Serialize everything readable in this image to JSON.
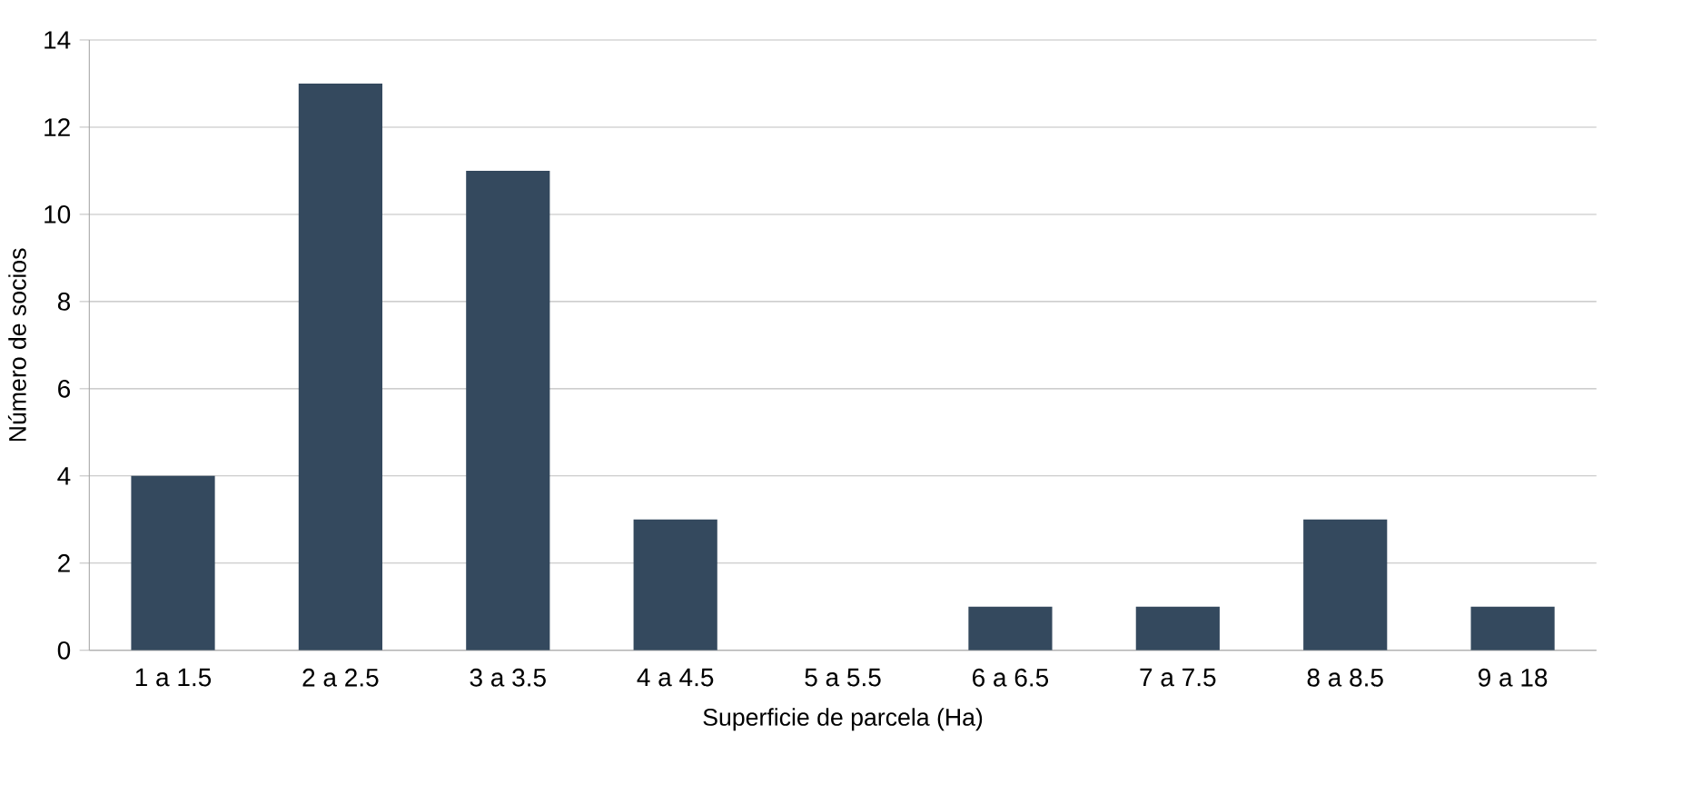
{
  "chart_data": {
    "type": "bar",
    "xlabel": "Superficie de parcela (Ha)",
    "ylabel": "Número de socios",
    "categories": [
      "1 a 1.5",
      "2 a 2.5",
      "3 a 3.5",
      "4 a 4.5",
      "5 a 5.5",
      "6 a 6.5",
      "7 a 7.5",
      "8 a 8.5",
      "9 a 18"
    ],
    "values": [
      4,
      13,
      11,
      3,
      0,
      1,
      1,
      3,
      1
    ],
    "color": "#34495e",
    "ylim": [
      0,
      14
    ],
    "yticks": [
      0,
      2,
      4,
      6,
      8,
      10,
      12,
      14
    ],
    "grid": "y"
  }
}
